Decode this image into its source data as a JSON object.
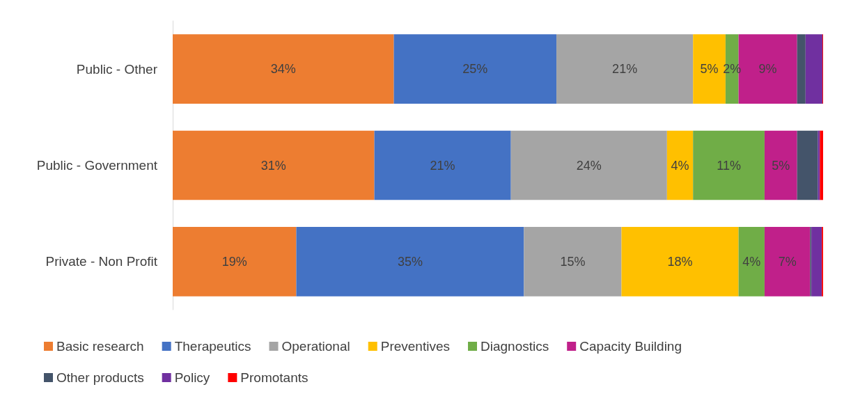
{
  "chart_data": {
    "type": "bar",
    "orientation": "horizontal",
    "stacked": true,
    "categories": [
      "Public - Other",
      "Public - Government",
      "Private - Non Profit"
    ],
    "xlim": [
      0,
      100
    ],
    "tick_labels": "y",
    "grid": false,
    "legend": "bottom",
    "series": [
      {
        "name": "Basic research",
        "color": "#ed7d31",
        "values": [
          34,
          31,
          19
        ],
        "value_labels": [
          "34%",
          "31%",
          "19%"
        ]
      },
      {
        "name": "Therapeutics",
        "color": "#4472c4",
        "values": [
          25,
          21,
          35
        ],
        "value_labels": [
          "25%",
          "21%",
          "35%"
        ]
      },
      {
        "name": "Operational",
        "color": "#a5a5a5",
        "values": [
          21,
          24,
          15
        ],
        "value_labels": [
          "21%",
          "24%",
          "15%"
        ]
      },
      {
        "name": "Preventives",
        "color": "#ffc000",
        "values": [
          5,
          4,
          18
        ],
        "value_labels": [
          "5%",
          "4%",
          "18%"
        ]
      },
      {
        "name": "Diagnostics",
        "color": "#70ad47",
        "values": [
          2,
          11,
          4
        ],
        "value_labels": [
          "2%",
          "11%",
          "4%"
        ]
      },
      {
        "name": "Capacity Building",
        "color": "#c0208a",
        "values": [
          9,
          5,
          7
        ],
        "value_labels": [
          "9%",
          "5%",
          "7%"
        ]
      },
      {
        "name": "Other products",
        "color": "#44546a",
        "values": [
          1.3,
          3.2,
          0.2
        ],
        "value_labels": [
          null,
          null,
          null
        ]
      },
      {
        "name": "Policy",
        "color": "#7030a0",
        "values": [
          2.6,
          0.3,
          1.6
        ],
        "value_labels": [
          null,
          null,
          null
        ]
      },
      {
        "name": "Promotants",
        "color": "#ff0000",
        "values": [
          0.1,
          0.5,
          0.2
        ],
        "value_labels": [
          null,
          null,
          null
        ]
      }
    ]
  }
}
